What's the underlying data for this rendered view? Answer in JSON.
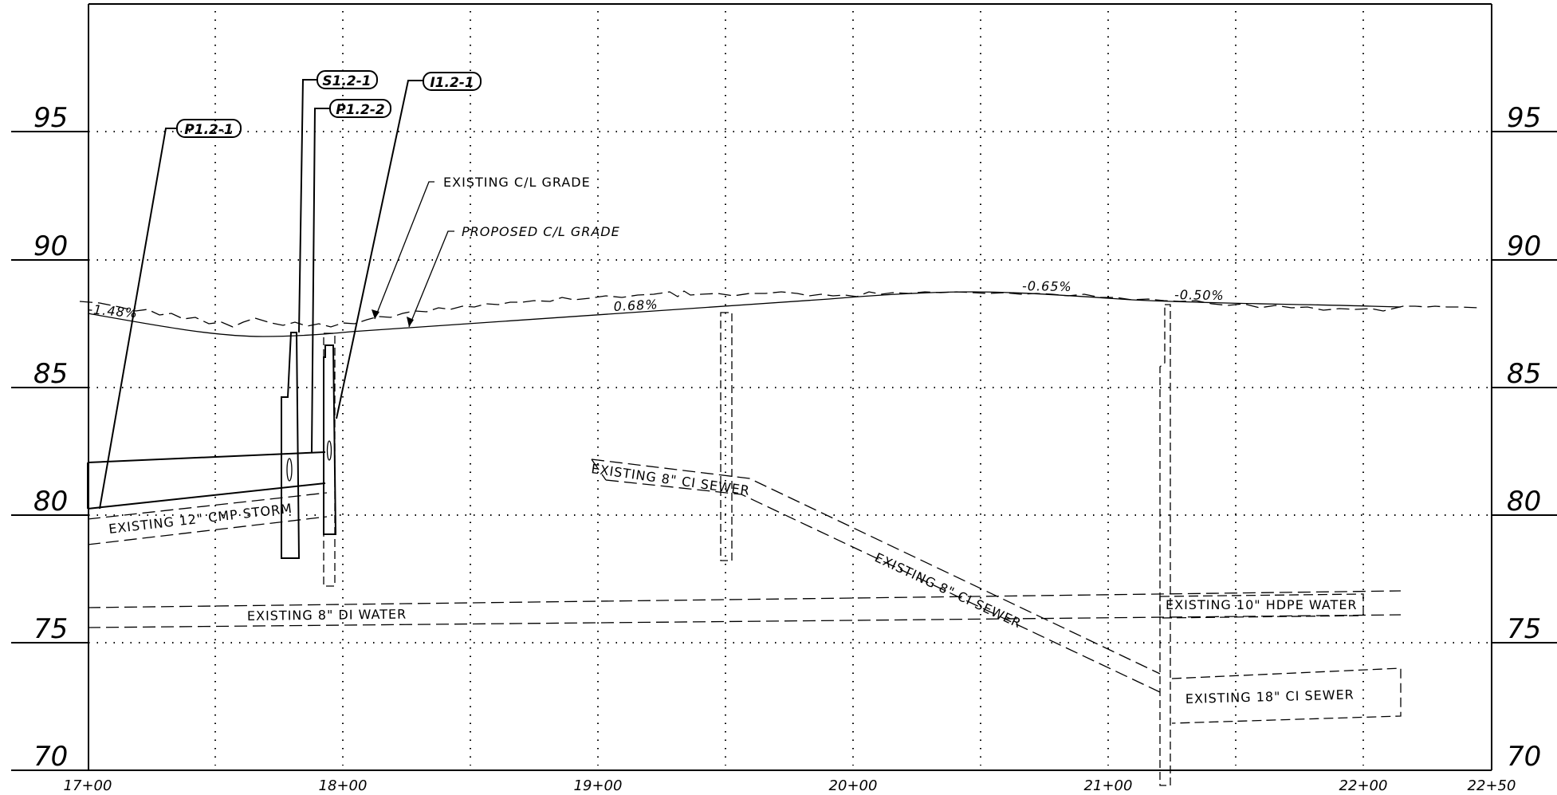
{
  "elevations": [
    "95",
    "90",
    "85",
    "80",
    "75",
    "70"
  ],
  "stations": [
    "17+00",
    "18+00",
    "19+00",
    "20+00",
    "21+00",
    "22+00",
    "22+50"
  ],
  "grade_callouts": {
    "existing": "EXISTING C/L GRADE",
    "proposed": "PROPOSED C/L GRADE"
  },
  "slopes": [
    "-1.48%",
    "0.68%",
    "-0.65%",
    "-0.50%"
  ],
  "utilities": {
    "storm": "EXISTING 12\" CMP STORM",
    "sewer_a": "EXISTING 8\" CI SEWER",
    "sewer_b": "EXISTING 8\" CI SEWER",
    "water_8": "EXISTING 8\" DI WATER",
    "water_10": "EXISTING 10\" HDPE WATER",
    "sewer_18": "EXISTING 18\" CI SEWER"
  },
  "structure_tags": [
    "P1.2-1",
    "S1.2-1",
    "P1.2-2",
    "I1.2-1"
  ]
}
